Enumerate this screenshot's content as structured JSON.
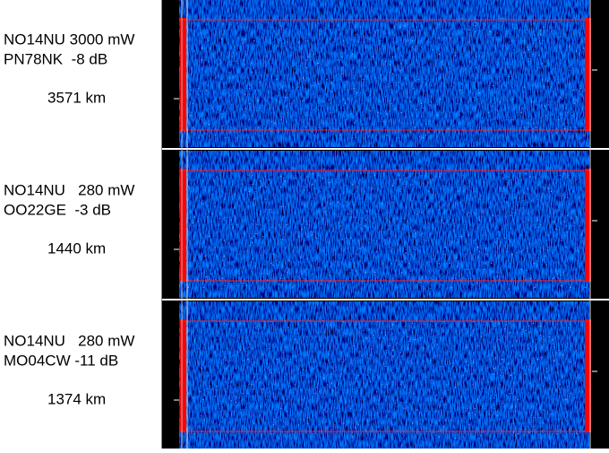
{
  "panels": [
    {
      "line1": "NO14NU 3000 mW",
      "line2": "PN78NK  -8 dB",
      "distance": "3571 km"
    },
    {
      "line1": "NO14NU   280 mW",
      "line2": "OO22GE  -3 dB",
      "distance": "1440 km"
    },
    {
      "line1": "NO14NU   280 mW",
      "line2": "MO04CW -11 dB",
      "distance": "1374 km"
    }
  ]
}
